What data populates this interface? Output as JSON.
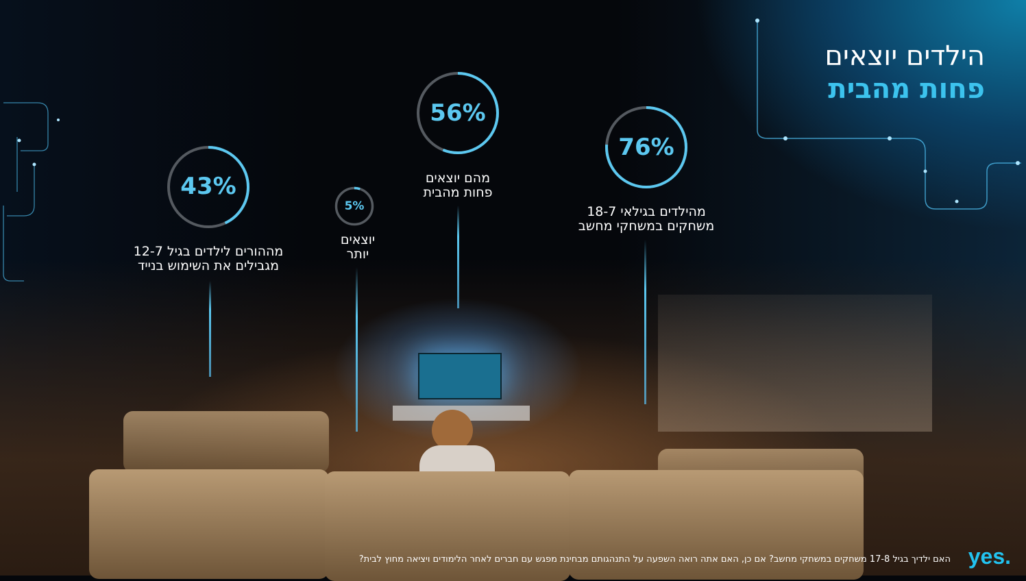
{
  "title": {
    "line1": "הילדים יוצאים",
    "line2": "פחות מהבית"
  },
  "stats": [
    {
      "value": 43,
      "text": "43%",
      "label_line1": "מההורים לילדים בגיל 12-7",
      "label_line2": "מגבילים את השימוש בנייד"
    },
    {
      "value": 5,
      "text": "5%",
      "label_line1": "יוצאים",
      "label_line2": "יותר"
    },
    {
      "value": 56,
      "text": "56%",
      "label_line1": "מהם יוצאים",
      "label_line2": "פחות מהבית"
    },
    {
      "value": 76,
      "text": "76%",
      "label_line1": "מהילדים בגילאי 18-7",
      "label_line2": "משחקים במשחקי מחשב"
    }
  ],
  "footer": "האם ילדיך בגיל 17-8 משחקים במשחקי מחשב? אם כן, האם אתה רואה השפעה על התנהגותם מבחינת מפגש עם חברים לאחר הלימודים ויציאה מחוץ לבית?",
  "logo": "yes.",
  "colors": {
    "accent": "#5cc8f0",
    "ring_track": "#555a60",
    "brand": "#22c3f0"
  }
}
